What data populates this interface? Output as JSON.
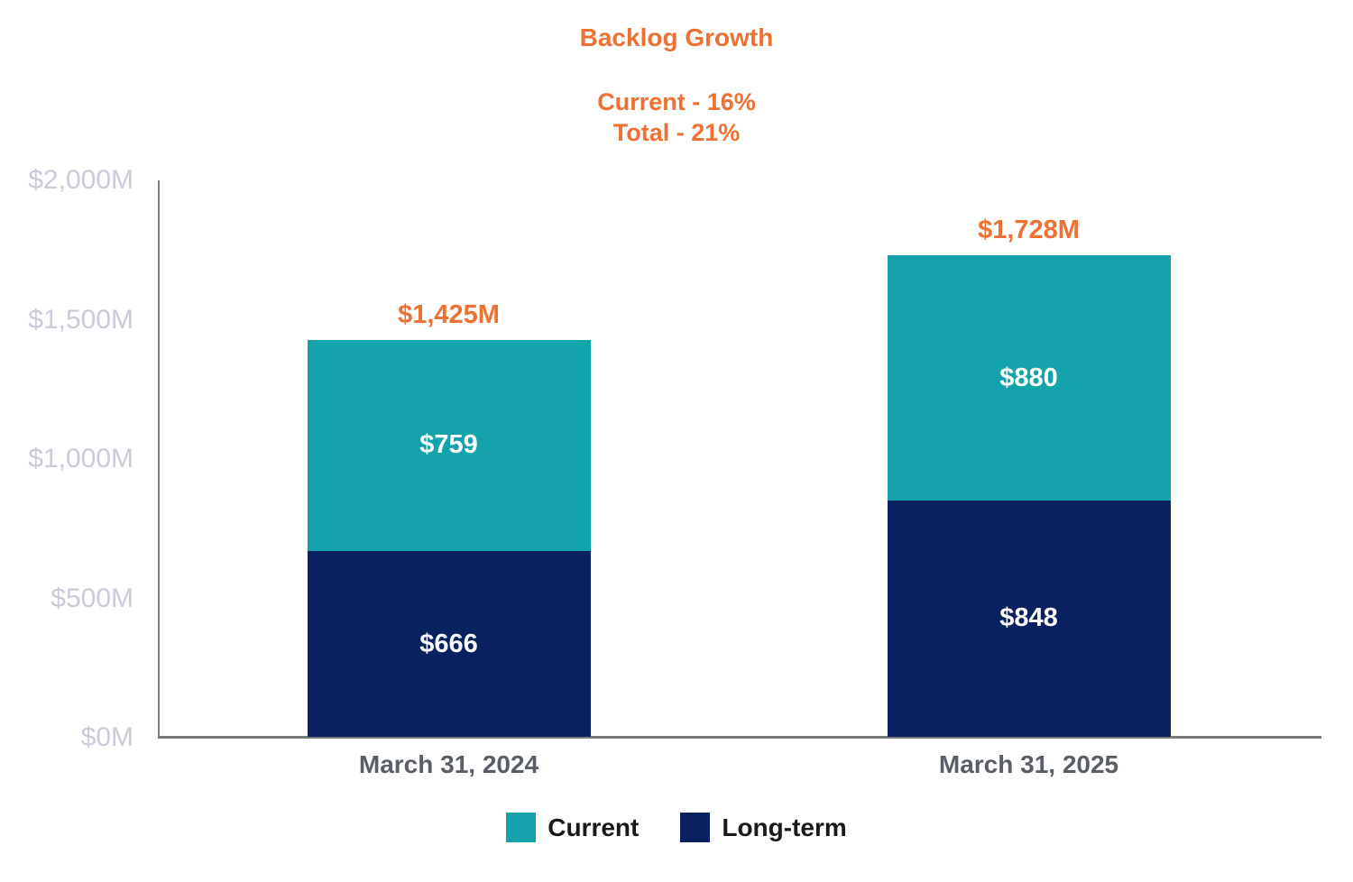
{
  "chart_data": {
    "type": "bar",
    "stacked": true,
    "title": "Backlog Growth",
    "subtitle_lines": [
      "Current - 16%",
      "Total - 21%"
    ],
    "categories": [
      "March 31, 2024",
      "March 31, 2025"
    ],
    "series": [
      {
        "name": "Long-term",
        "color": "#0A2161",
        "values": [
          666,
          848
        ],
        "labels": [
          "$666",
          "$848"
        ]
      },
      {
        "name": "Current",
        "color": "#14A3AC",
        "values": [
          759,
          880
        ],
        "labels": [
          "$759",
          "$880"
        ]
      }
    ],
    "totals": {
      "values": [
        1425,
        1728
      ],
      "labels": [
        "$1,425M",
        "$1,728M"
      ]
    },
    "y_axis": {
      "ylim": [
        0,
        2000
      ],
      "ticks": [
        {
          "value": 0,
          "label": "$0M"
        },
        {
          "value": 500,
          "label": "$500M"
        },
        {
          "value": 1000,
          "label": "$1,000M"
        },
        {
          "value": 1500,
          "label": "$1,500M"
        },
        {
          "value": 2000,
          "label": "$2,000M"
        }
      ]
    },
    "grid": false,
    "legend": {
      "position": "bottom",
      "entries": [
        "Current",
        "Long-term"
      ]
    }
  },
  "colors": {
    "accent_orange": "#ED7132",
    "teal": "#14A3AC",
    "navy": "#0A2161",
    "axis_line": "#7E7E7E",
    "y_tick_label": "#C9CCD8",
    "x_category_label": "#5A5E66",
    "legend_text": "#1A1A1A"
  }
}
